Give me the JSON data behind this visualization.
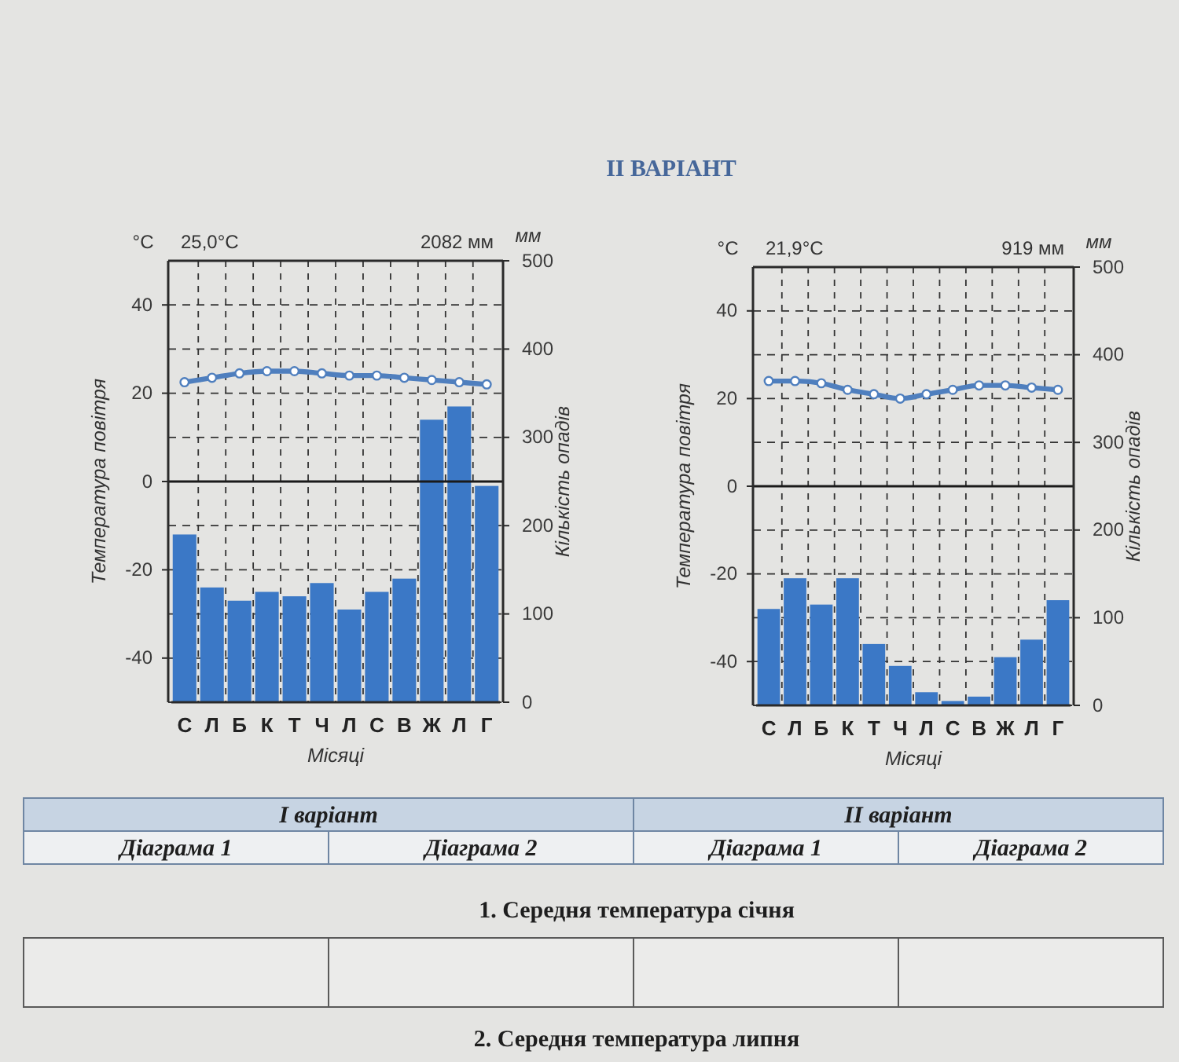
{
  "chart_data": [
    {
      "type": "other",
      "title": "II ВАРІАНТ"
    },
    {
      "type": "bar",
      "categories": [
        "С",
        "Л",
        "Б",
        "К",
        "Т",
        "Ч",
        "Л",
        "С",
        "В",
        "Ж",
        "Л",
        "Г"
      ],
      "series": [
        {
          "type": "bar",
          "axis": "y2",
          "color": "#3b78c6",
          "values": [
            190,
            130,
            115,
            125,
            120,
            135,
            105,
            125,
            140,
            320,
            335,
            245
          ]
        },
        {
          "type": "line",
          "color": "#4f7fbe",
          "values": [
            22.5,
            23.5,
            24.5,
            25,
            25,
            24.5,
            24,
            24,
            23.5,
            23,
            22.5,
            22
          ]
        }
      ],
      "ylim": [
        -50,
        50
      ],
      "yticks": [
        -40,
        -20,
        0,
        20,
        40
      ],
      "y2lim": [
        0,
        500
      ],
      "y2ticks": [
        0,
        100,
        200,
        300,
        400,
        500
      ],
      "xlabel": "Місяці",
      "ylabel": "Температура повітря",
      "y2label": "Кількість опадів",
      "annotations": [
        "°C",
        "мм",
        "25,0°C",
        "2082 мм"
      ],
      "grid": true,
      "marker": "circle",
      "ref_lines": [
        {
          "axis": "y",
          "value": 0
        }
      ]
    },
    {
      "type": "bar",
      "categories": [
        "С",
        "Л",
        "Б",
        "К",
        "Т",
        "Ч",
        "Л",
        "С",
        "В",
        "Ж",
        "Л",
        "Г"
      ],
      "series": [
        {
          "type": "bar",
          "axis": "y2",
          "color": "#3b78c6",
          "values": [
            110,
            145,
            115,
            145,
            70,
            45,
            15,
            5,
            10,
            55,
            75,
            120
          ]
        },
        {
          "type": "line",
          "color": "#4f7fbe",
          "values": [
            24,
            24,
            23.5,
            22,
            21,
            20,
            21,
            22,
            23,
            23,
            22.5,
            22
          ]
        }
      ],
      "ylim": [
        -50,
        50
      ],
      "yticks": [
        -40,
        -20,
        0,
        20,
        40
      ],
      "y2lim": [
        0,
        500
      ],
      "y2ticks": [
        0,
        100,
        200,
        300,
        400,
        500
      ],
      "xlabel": "Місяці",
      "ylabel": "Температура повітря",
      "y2label": "Кількість опадів",
      "annotations": [
        "°C",
        "мм",
        "21,9°C",
        "919 мм"
      ],
      "grid": true,
      "marker": "circle",
      "ref_lines": [
        {
          "axis": "y",
          "value": 0
        }
      ]
    },
    {
      "type": "other",
      "annotations": [
        "I варіант",
        "II варіант",
        "Діаграма 1",
        "Діаграма 2",
        "Діаграма 1",
        "Діаграма 2",
        "1. Середня температура січня",
        "2. Середня температура липня"
      ]
    }
  ]
}
